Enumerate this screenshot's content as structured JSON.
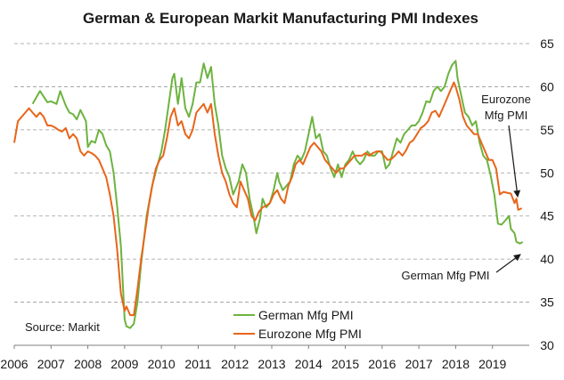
{
  "chart_data": {
    "type": "line",
    "title": "German & European Markit Manufacturing PMI Indexes",
    "xlabel": "",
    "ylabel": "",
    "xlim": [
      2006.0,
      2020.0
    ],
    "ylim": [
      30,
      65
    ],
    "y_axis_side": "right",
    "x_ticks": [
      "2006",
      "2007",
      "2008",
      "2009",
      "2010",
      "2011",
      "2012",
      "2013",
      "2014",
      "2015",
      "2016",
      "2017",
      "2018",
      "2019"
    ],
    "y_ticks": [
      30,
      35,
      40,
      45,
      50,
      55,
      60,
      65
    ],
    "grid": "horizontal dashed",
    "source": "Source:   Markit",
    "legend_position": "bottom-center",
    "series": [
      {
        "name": "German Mfg PMI",
        "color": "#6db33f",
        "points": [
          [
            2006.5,
            58.0
          ],
          [
            2006.7,
            59.5
          ],
          [
            2006.9,
            58.2
          ],
          [
            2007.0,
            58.3
          ],
          [
            2007.15,
            58.0
          ],
          [
            2007.25,
            59.5
          ],
          [
            2007.4,
            57.8
          ],
          [
            2007.5,
            57.0
          ],
          [
            2007.6,
            56.8
          ],
          [
            2007.7,
            56.2
          ],
          [
            2007.8,
            57.3
          ],
          [
            2007.95,
            56.0
          ],
          [
            2008.0,
            53.0
          ],
          [
            2008.1,
            53.7
          ],
          [
            2008.2,
            53.5
          ],
          [
            2008.3,
            55.0
          ],
          [
            2008.4,
            54.5
          ],
          [
            2008.5,
            53.2
          ],
          [
            2008.6,
            52.5
          ],
          [
            2008.7,
            50.0
          ],
          [
            2008.8,
            46.0
          ],
          [
            2008.9,
            41.5
          ],
          [
            2009.0,
            33.0
          ],
          [
            2009.05,
            32.2
          ],
          [
            2009.15,
            32.0
          ],
          [
            2009.25,
            32.5
          ],
          [
            2009.35,
            35.0
          ],
          [
            2009.45,
            39.5
          ],
          [
            2009.6,
            45.0
          ],
          [
            2009.75,
            48.5
          ],
          [
            2009.9,
            51.0
          ],
          [
            2010.0,
            52.5
          ],
          [
            2010.1,
            55.0
          ],
          [
            2010.2,
            58.0
          ],
          [
            2010.3,
            61.0
          ],
          [
            2010.35,
            61.5
          ],
          [
            2010.45,
            58.0
          ],
          [
            2010.55,
            61.0
          ],
          [
            2010.65,
            57.5
          ],
          [
            2010.75,
            56.5
          ],
          [
            2010.85,
            58.0
          ],
          [
            2010.95,
            60.5
          ],
          [
            2011.05,
            60.5
          ],
          [
            2011.15,
            62.7
          ],
          [
            2011.25,
            61.0
          ],
          [
            2011.35,
            62.3
          ],
          [
            2011.45,
            58.0
          ],
          [
            2011.55,
            55.5
          ],
          [
            2011.65,
            52.0
          ],
          [
            2011.75,
            50.5
          ],
          [
            2011.85,
            49.5
          ],
          [
            2011.95,
            47.5
          ],
          [
            2012.0,
            48.0
          ],
          [
            2012.1,
            49.0
          ],
          [
            2012.2,
            51.0
          ],
          [
            2012.3,
            50.0
          ],
          [
            2012.4,
            47.0
          ],
          [
            2012.5,
            45.0
          ],
          [
            2012.58,
            43.0
          ],
          [
            2012.68,
            44.7
          ],
          [
            2012.75,
            47.0
          ],
          [
            2012.85,
            46.0
          ],
          [
            2012.95,
            46.5
          ],
          [
            2013.05,
            48.0
          ],
          [
            2013.15,
            50.0
          ],
          [
            2013.2,
            49.0
          ],
          [
            2013.3,
            48.0
          ],
          [
            2013.4,
            48.5
          ],
          [
            2013.5,
            49.0
          ],
          [
            2013.6,
            51.0
          ],
          [
            2013.7,
            52.0
          ],
          [
            2013.8,
            51.5
          ],
          [
            2013.9,
            52.5
          ],
          [
            2014.0,
            54.5
          ],
          [
            2014.1,
            56.5
          ],
          [
            2014.2,
            54.0
          ],
          [
            2014.3,
            54.5
          ],
          [
            2014.4,
            52.5
          ],
          [
            2014.5,
            52.0
          ],
          [
            2014.6,
            50.5
          ],
          [
            2014.7,
            49.5
          ],
          [
            2014.8,
            51.0
          ],
          [
            2014.9,
            49.5
          ],
          [
            2015.0,
            51.0
          ],
          [
            2015.1,
            51.5
          ],
          [
            2015.2,
            52.5
          ],
          [
            2015.3,
            51.5
          ],
          [
            2015.4,
            51.0
          ],
          [
            2015.5,
            51.5
          ],
          [
            2015.6,
            52.5
          ],
          [
            2015.7,
            52.0
          ],
          [
            2015.8,
            52.0
          ],
          [
            2015.9,
            52.5
          ],
          [
            2016.0,
            52.5
          ],
          [
            2016.1,
            50.5
          ],
          [
            2016.2,
            51.0
          ],
          [
            2016.3,
            52.5
          ],
          [
            2016.4,
            54.0
          ],
          [
            2016.5,
            53.5
          ],
          [
            2016.6,
            54.5
          ],
          [
            2016.7,
            55.0
          ],
          [
            2016.8,
            55.5
          ],
          [
            2016.9,
            55.5
          ],
          [
            2017.0,
            56.0
          ],
          [
            2017.1,
            57.0
          ],
          [
            2017.2,
            58.3
          ],
          [
            2017.3,
            58.2
          ],
          [
            2017.4,
            59.5
          ],
          [
            2017.5,
            60.0
          ],
          [
            2017.6,
            59.5
          ],
          [
            2017.7,
            60.0
          ],
          [
            2017.8,
            61.5
          ],
          [
            2017.9,
            62.5
          ],
          [
            2018.0,
            63.0
          ],
          [
            2018.05,
            61.0
          ],
          [
            2018.15,
            59.0
          ],
          [
            2018.25,
            57.0
          ],
          [
            2018.35,
            56.5
          ],
          [
            2018.45,
            55.5
          ],
          [
            2018.55,
            56.0
          ],
          [
            2018.65,
            53.5
          ],
          [
            2018.75,
            52.0
          ],
          [
            2018.85,
            51.5
          ],
          [
            2018.95,
            49.7
          ],
          [
            2019.05,
            47.5
          ],
          [
            2019.15,
            44.1
          ],
          [
            2019.25,
            44.0
          ],
          [
            2019.35,
            44.5
          ],
          [
            2019.45,
            45.0
          ],
          [
            2019.5,
            43.5
          ],
          [
            2019.6,
            43.0
          ],
          [
            2019.65,
            42.0
          ],
          [
            2019.75,
            41.8
          ],
          [
            2019.82,
            42.0
          ]
        ]
      },
      {
        "name": "Eurozone Mfg PMI",
        "color": "#e8651a",
        "points": [
          [
            2006.0,
            53.5
          ],
          [
            2006.1,
            56.0
          ],
          [
            2006.2,
            56.5
          ],
          [
            2006.3,
            57.0
          ],
          [
            2006.4,
            57.5
          ],
          [
            2006.5,
            57.0
          ],
          [
            2006.6,
            56.5
          ],
          [
            2006.7,
            57.0
          ],
          [
            2006.8,
            56.5
          ],
          [
            2006.9,
            55.5
          ],
          [
            2007.0,
            55.5
          ],
          [
            2007.1,
            55.3
          ],
          [
            2007.2,
            55.0
          ],
          [
            2007.3,
            54.8
          ],
          [
            2007.4,
            55.2
          ],
          [
            2007.5,
            54.0
          ],
          [
            2007.6,
            54.5
          ],
          [
            2007.7,
            54.0
          ],
          [
            2007.8,
            52.5
          ],
          [
            2007.9,
            52.0
          ],
          [
            2008.0,
            52.5
          ],
          [
            2008.1,
            52.3
          ],
          [
            2008.2,
            52.0
          ],
          [
            2008.3,
            51.5
          ],
          [
            2008.4,
            50.5
          ],
          [
            2008.5,
            49.5
          ],
          [
            2008.6,
            47.5
          ],
          [
            2008.7,
            45.0
          ],
          [
            2008.8,
            41.0
          ],
          [
            2008.9,
            36.0
          ],
          [
            2009.0,
            34.0
          ],
          [
            2009.05,
            34.5
          ],
          [
            2009.15,
            33.5
          ],
          [
            2009.25,
            33.5
          ],
          [
            2009.35,
            36.5
          ],
          [
            2009.45,
            40.0
          ],
          [
            2009.55,
            43.0
          ],
          [
            2009.65,
            46.0
          ],
          [
            2009.75,
            48.5
          ],
          [
            2009.85,
            50.5
          ],
          [
            2009.95,
            51.5
          ],
          [
            2010.05,
            52.0
          ],
          [
            2010.15,
            54.0
          ],
          [
            2010.25,
            56.5
          ],
          [
            2010.35,
            57.5
          ],
          [
            2010.45,
            55.5
          ],
          [
            2010.55,
            56.0
          ],
          [
            2010.65,
            54.5
          ],
          [
            2010.75,
            54.0
          ],
          [
            2010.85,
            55.0
          ],
          [
            2010.95,
            57.0
          ],
          [
            2011.05,
            57.5
          ],
          [
            2011.15,
            58.0
          ],
          [
            2011.25,
            57.0
          ],
          [
            2011.35,
            58.0
          ],
          [
            2011.45,
            54.5
          ],
          [
            2011.55,
            52.0
          ],
          [
            2011.65,
            50.0
          ],
          [
            2011.75,
            49.0
          ],
          [
            2011.85,
            47.5
          ],
          [
            2011.95,
            46.5
          ],
          [
            2012.05,
            46.0
          ],
          [
            2012.15,
            49.0
          ],
          [
            2012.25,
            48.0
          ],
          [
            2012.35,
            47.0
          ],
          [
            2012.45,
            45.0
          ],
          [
            2012.55,
            44.5
          ],
          [
            2012.65,
            45.5
          ],
          [
            2012.75,
            46.0
          ],
          [
            2012.85,
            46.2
          ],
          [
            2012.95,
            46.5
          ],
          [
            2013.05,
            47.5
          ],
          [
            2013.15,
            48.0
          ],
          [
            2013.25,
            47.0
          ],
          [
            2013.35,
            46.5
          ],
          [
            2013.45,
            48.5
          ],
          [
            2013.55,
            49.5
          ],
          [
            2013.65,
            51.0
          ],
          [
            2013.75,
            51.5
          ],
          [
            2013.85,
            51.0
          ],
          [
            2013.95,
            52.0
          ],
          [
            2014.05,
            53.0
          ],
          [
            2014.15,
            53.5
          ],
          [
            2014.25,
            53.0
          ],
          [
            2014.35,
            52.5
          ],
          [
            2014.45,
            51.5
          ],
          [
            2014.55,
            51.0
          ],
          [
            2014.65,
            50.5
          ],
          [
            2014.75,
            50.0
          ],
          [
            2014.85,
            50.5
          ],
          [
            2014.95,
            50.5
          ],
          [
            2015.05,
            51.0
          ],
          [
            2015.15,
            51.5
          ],
          [
            2015.25,
            52.0
          ],
          [
            2015.35,
            52.0
          ],
          [
            2015.45,
            52.0
          ],
          [
            2015.55,
            52.3
          ],
          [
            2015.65,
            52.0
          ],
          [
            2015.75,
            52.3
          ],
          [
            2015.85,
            52.5
          ],
          [
            2015.95,
            52.5
          ],
          [
            2016.05,
            52.0
          ],
          [
            2016.15,
            51.5
          ],
          [
            2016.25,
            51.6
          ],
          [
            2016.35,
            52.0
          ],
          [
            2016.45,
            52.5
          ],
          [
            2016.55,
            52.0
          ],
          [
            2016.65,
            52.6
          ],
          [
            2016.75,
            53.5
          ],
          [
            2016.85,
            53.8
          ],
          [
            2016.95,
            54.5
          ],
          [
            2017.05,
            55.2
          ],
          [
            2017.15,
            55.5
          ],
          [
            2017.25,
            56.0
          ],
          [
            2017.35,
            57.0
          ],
          [
            2017.45,
            57.2
          ],
          [
            2017.55,
            56.5
          ],
          [
            2017.65,
            57.5
          ],
          [
            2017.75,
            58.5
          ],
          [
            2017.85,
            59.5
          ],
          [
            2017.95,
            60.5
          ],
          [
            2018.0,
            60.0
          ],
          [
            2018.1,
            58.5
          ],
          [
            2018.2,
            56.5
          ],
          [
            2018.3,
            55.5
          ],
          [
            2018.4,
            55.0
          ],
          [
            2018.5,
            54.5
          ],
          [
            2018.6,
            54.5
          ],
          [
            2018.7,
            53.5
          ],
          [
            2018.8,
            52.5
          ],
          [
            2018.9,
            51.5
          ],
          [
            2019.0,
            51.5
          ],
          [
            2019.1,
            50.5
          ],
          [
            2019.2,
            47.5
          ],
          [
            2019.3,
            47.8
          ],
          [
            2019.4,
            47.7
          ],
          [
            2019.5,
            47.6
          ],
          [
            2019.6,
            46.5
          ],
          [
            2019.65,
            47.0
          ],
          [
            2019.7,
            45.7
          ],
          [
            2019.8,
            45.9
          ]
        ]
      }
    ],
    "annotations": [
      {
        "text": "Eurozone",
        "x": 2020.3,
        "y": 59.3
      },
      {
        "text": "Mfg PMI",
        "x": 2020.3,
        "y": 57.6
      },
      {
        "text": "German Mfg PMI",
        "x": 2019.0,
        "y": 38.2
      }
    ]
  }
}
